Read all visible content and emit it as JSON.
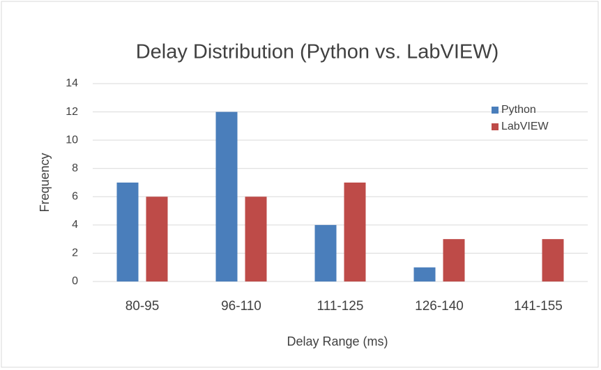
{
  "chart_data": {
    "type": "bar",
    "title": "Delay Distribution (Python vs. LabVIEW)",
    "x_label": "Delay Range (ms)",
    "y_label": "Frequency",
    "categories": [
      "80-95",
      "96-110",
      "111-125",
      "126-140",
      "141-155"
    ],
    "series": [
      {
        "name": "Python",
        "color": "#4a7ebb",
        "values": [
          7,
          12,
          4,
          1,
          0
        ]
      },
      {
        "name": "LabVIEW",
        "color": "#be4b48",
        "values": [
          6,
          6,
          7,
          3,
          3
        ]
      }
    ],
    "ylim": [
      0,
      14
    ],
    "yticks": [
      0,
      2,
      4,
      6,
      8,
      10,
      12,
      14
    ],
    "grid": true,
    "legend": "top-right"
  }
}
